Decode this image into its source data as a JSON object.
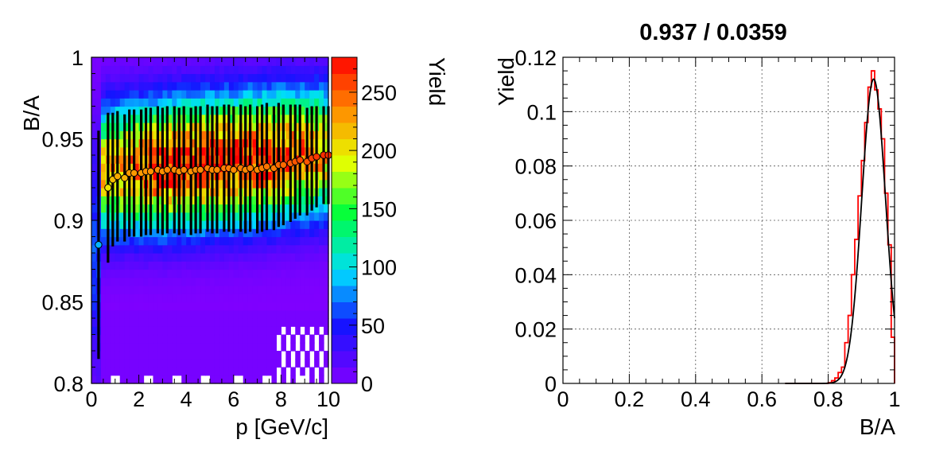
{
  "chart_data": [
    {
      "type": "heatmap",
      "title": "",
      "xlabel": "p [GeV/c]",
      "ylabel": "B/A",
      "zlabel": "Yield",
      "xlim": [
        0,
        10
      ],
      "ylim": [
        0.8,
        1.0
      ],
      "zlim": [
        0,
        280
      ],
      "x_ticks": [
        "0",
        "2",
        "4",
        "6",
        "8",
        "10"
      ],
      "y_ticks": [
        "0.8",
        "0.85",
        "0.9",
        "0.95",
        "1"
      ],
      "z_ticks": [
        "0",
        "50",
        "100",
        "150",
        "200",
        "250"
      ],
      "colormap": "rainbow",
      "grid": false,
      "profile_series": {
        "x": [
          0.3,
          0.7,
          0.9,
          1.1,
          1.4,
          1.6,
          1.8,
          2.1,
          2.3,
          2.5,
          2.8,
          3.0,
          3.2,
          3.5,
          3.7,
          3.9,
          4.2,
          4.4,
          4.6,
          4.9,
          5.1,
          5.3,
          5.6,
          5.8,
          6.0,
          6.3,
          6.5,
          6.7,
          7.0,
          7.2,
          7.4,
          7.7,
          7.9,
          8.1,
          8.4,
          8.6,
          8.8,
          9.1,
          9.3,
          9.5,
          9.8,
          10.0
        ],
        "y": [
          0.885,
          0.92,
          0.925,
          0.927,
          0.926,
          0.929,
          0.929,
          0.929,
          0.93,
          0.93,
          0.931,
          0.93,
          0.931,
          0.931,
          0.93,
          0.931,
          0.93,
          0.931,
          0.931,
          0.932,
          0.931,
          0.931,
          0.932,
          0.932,
          0.931,
          0.932,
          0.931,
          0.932,
          0.931,
          0.932,
          0.933,
          0.932,
          0.934,
          0.934,
          0.935,
          0.936,
          0.937,
          0.936,
          0.938,
          0.939,
          0.94,
          0.94
        ],
        "spread": [
          0.07,
          0.046,
          0.041,
          0.04,
          0.039,
          0.039,
          0.039,
          0.039,
          0.039,
          0.039,
          0.039,
          0.039,
          0.039,
          0.039,
          0.039,
          0.039,
          0.039,
          0.039,
          0.039,
          0.039,
          0.039,
          0.039,
          0.039,
          0.039,
          0.039,
          0.039,
          0.039,
          0.039,
          0.039,
          0.039,
          0.039,
          0.038,
          0.038,
          0.037,
          0.036,
          0.035,
          0.034,
          0.033,
          0.032,
          0.031,
          0.03,
          0.03
        ]
      }
    },
    {
      "type": "line",
      "title": "0.937 / 0.0359",
      "xlabel": "B/A",
      "ylabel": "Yield",
      "xlim": [
        0,
        1
      ],
      "ylim": [
        0,
        0.12
      ],
      "x_ticks": [
        "0",
        "0.2",
        "0.4",
        "0.6",
        "0.8",
        "1"
      ],
      "y_ticks": [
        "0",
        "0.02",
        "0.04",
        "0.06",
        "0.08",
        "0.1",
        "0.12"
      ],
      "grid": true,
      "series": [
        {
          "style": "histogram",
          "color": "#ff0000",
          "bin_width": 0.01,
          "x": [
            0.8,
            0.81,
            0.82,
            0.83,
            0.84,
            0.85,
            0.86,
            0.87,
            0.88,
            0.89,
            0.9,
            0.91,
            0.92,
            0.93,
            0.94,
            0.95,
            0.96,
            0.97,
            0.98,
            0.99
          ],
          "values": [
            0.0003,
            0.001,
            0.002,
            0.004,
            0.006,
            0.015,
            0.025,
            0.04,
            0.053,
            0.069,
            0.082,
            0.096,
            0.109,
            0.115,
            0.108,
            0.101,
            0.09,
            0.07,
            0.051,
            0.017
          ]
        },
        {
          "style": "gaussian fit",
          "color": "#000000",
          "mean": 0.937,
          "sigma": 0.0359,
          "amplitude": 0.112,
          "x_range": [
            0.67,
            1.0
          ]
        }
      ]
    }
  ]
}
